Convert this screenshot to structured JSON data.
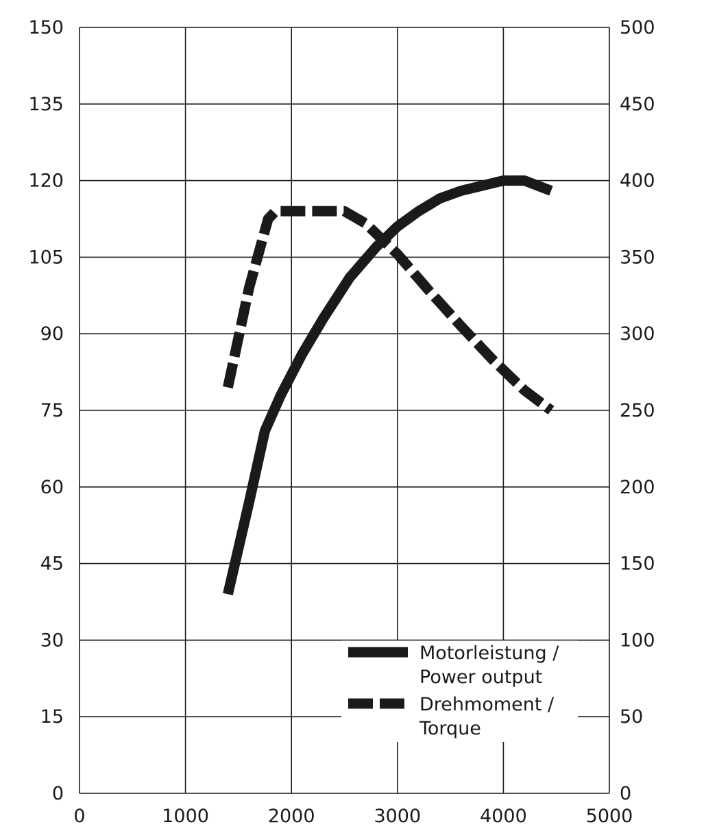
{
  "chart_data": {
    "type": "line",
    "title": "",
    "xlabel": "",
    "ylabel": "",
    "ylabel_right": "",
    "xlim": [
      0,
      5000
    ],
    "ylim_left": [
      0,
      150
    ],
    "ylim_right": [
      0,
      500
    ],
    "grid": true,
    "x_ticks": [
      "0",
      "1000",
      "2000",
      "3000",
      "4000",
      "5000"
    ],
    "y_left_ticks": [
      "0",
      "15",
      "30",
      "45",
      "60",
      "75",
      "90",
      "105",
      "120",
      "135",
      "150"
    ],
    "y_right_ticks": [
      "0",
      "50",
      "100",
      "150",
      "200",
      "250",
      "300",
      "350",
      "400",
      "450",
      "500"
    ],
    "legend_placement": "bottom-right",
    "series": [
      {
        "name": "Motorleistung / Power output",
        "axis": "left",
        "style": "solid",
        "color": "#1a1a1a",
        "x": [
          1400,
          1600,
          1750,
          1900,
          2100,
          2300,
          2550,
          2800,
          3000,
          3200,
          3400,
          3600,
          3800,
          4000,
          4200,
          4450
        ],
        "y": [
          39,
          57,
          71,
          78,
          86,
          93,
          101,
          107,
          111,
          114,
          116.5,
          118,
          119,
          120,
          120,
          118
        ]
      },
      {
        "name": "Drehmoment / Torque",
        "axis": "right",
        "style": "dashed",
        "color": "#1a1a1a",
        "x": [
          1400,
          1600,
          1780,
          1850,
          2000,
          2250,
          2500,
          2700,
          3000,
          3300,
          3600,
          3900,
          4200,
          4450
        ],
        "y": [
          265,
          330,
          375,
          380,
          380,
          380,
          380,
          372,
          352,
          328,
          305,
          283,
          263,
          250
        ]
      }
    ],
    "legend": [
      {
        "line1": "Motorleistung /",
        "line2": "Power output",
        "style": "solid"
      },
      {
        "line1": "Drehmoment /",
        "line2": "Torque",
        "style": "dashed"
      }
    ]
  }
}
